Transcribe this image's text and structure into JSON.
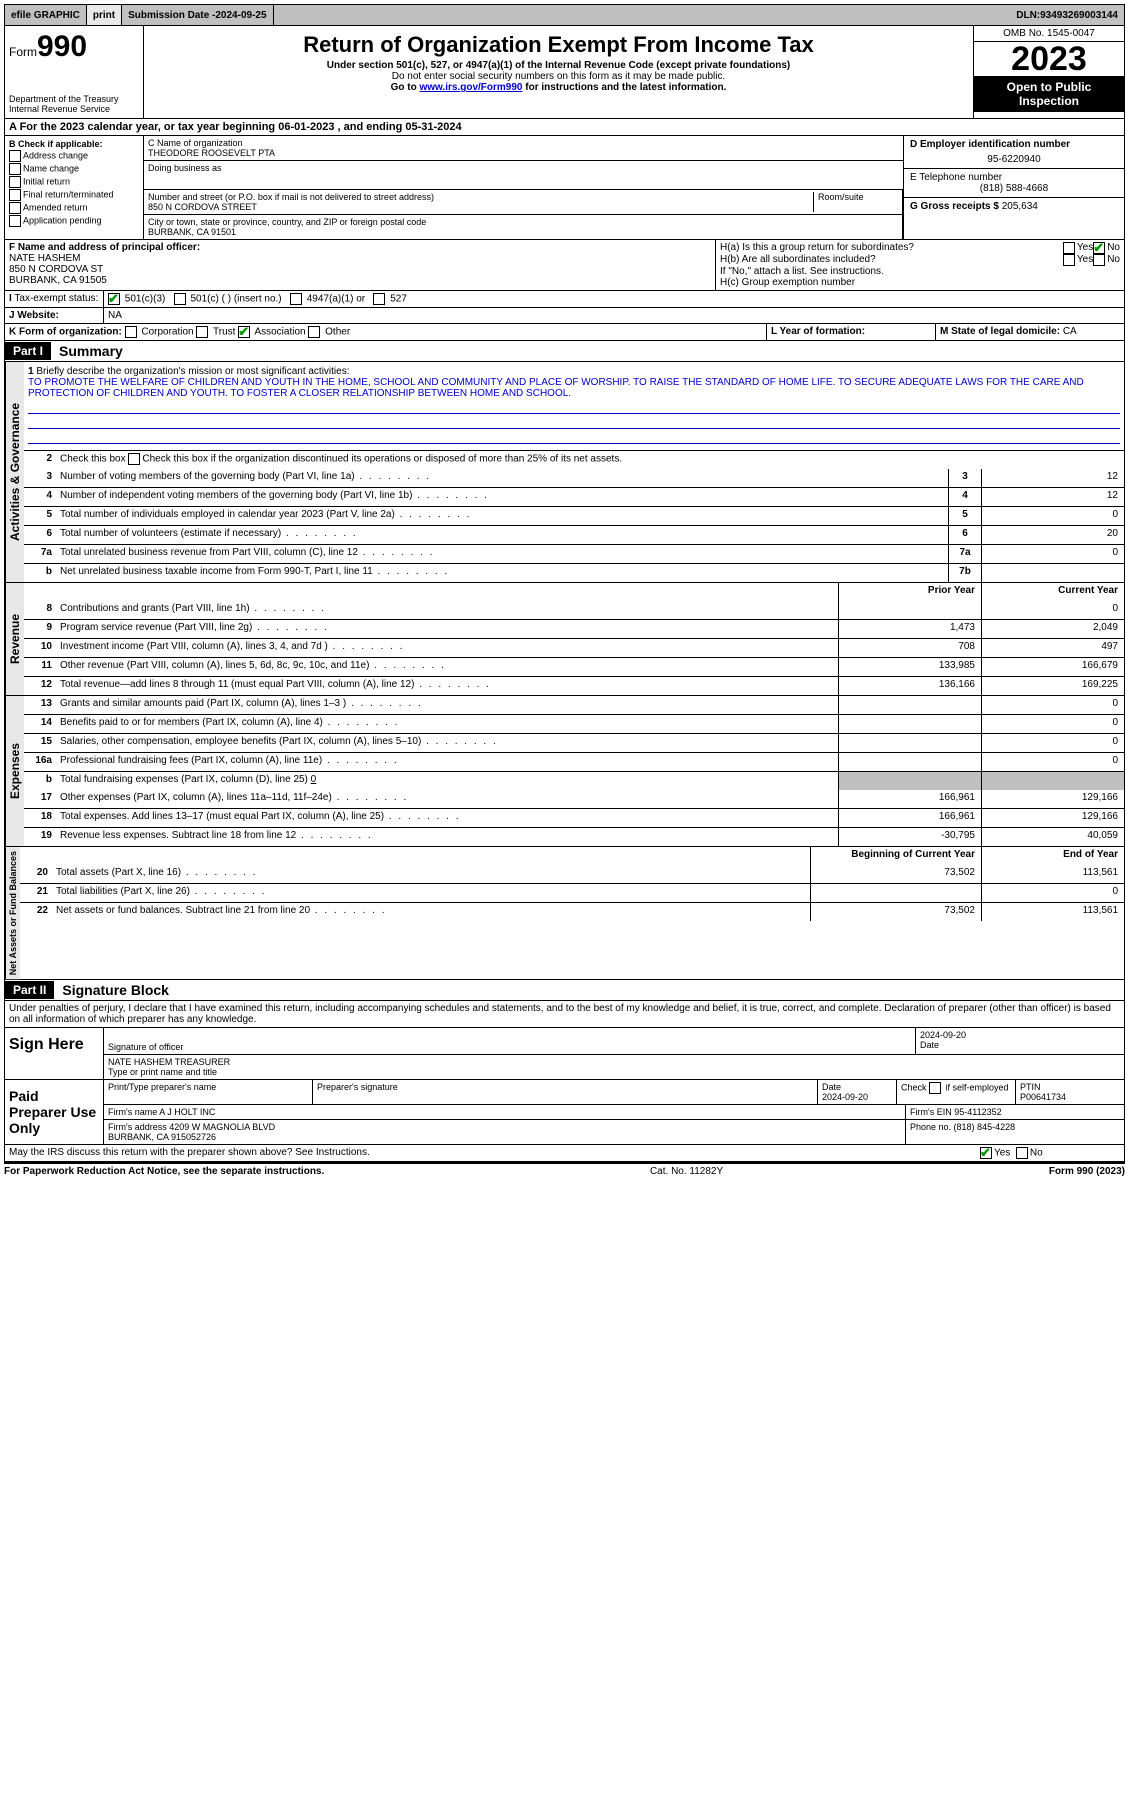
{
  "topbar": {
    "efile": "efile GRAPHIC",
    "print": "print",
    "subdate_label": "Submission Date - ",
    "subdate": "2024-09-25",
    "dln_label": "DLN: ",
    "dln": "93493269003144"
  },
  "header": {
    "form_label": "Form",
    "form_no": "990",
    "title": "Return of Organization Exempt From Income Tax",
    "sub1": "Under section 501(c), 527, or 4947(a)(1) of the Internal Revenue Code (except private foundations)",
    "sub2": "Do not enter social security numbers on this form as it may be made public.",
    "sub3_pre": "Go to ",
    "sub3_link": "www.irs.gov/Form990",
    "sub3_post": " for instructions and the latest information.",
    "dept": "Department of the Treasury\nInternal Revenue Service",
    "omb": "OMB No. 1545-0047",
    "year": "2023",
    "open": "Open to Public Inspection"
  },
  "A": {
    "text_pre": "A For the 2023 calendar year, or tax year beginning ",
    "begin": "06-01-2023",
    "mid": " , and ending ",
    "end": "05-31-2024"
  },
  "B": {
    "label": "B Check if applicable:",
    "items": [
      "Address change",
      "Name change",
      "Initial return",
      "Final return/terminated",
      "Amended return",
      "Application pending"
    ]
  },
  "C": {
    "name_label": "C Name of organization",
    "name": "THEODORE ROOSEVELT PTA",
    "dba_label": "Doing business as",
    "addr_label": "Number and street (or P.O. box if mail is not delivered to street address)",
    "addr": "850 N CORDOVA STREET",
    "room_label": "Room/suite",
    "city_label": "City or town, state or province, country, and ZIP or foreign postal code",
    "city": "BURBANK, CA  91501"
  },
  "D": {
    "label": "D Employer identification number",
    "val": "95-6220940"
  },
  "E": {
    "label": "E Telephone number",
    "val": "(818) 588-4668"
  },
  "G": {
    "label": "G Gross receipts $ ",
    "val": "205,634"
  },
  "F": {
    "label": "F  Name and address of principal officer:",
    "name": "NATE HASHEM",
    "addr": "850 N CORDOVA ST",
    "city": "BURBANK, CA  91505"
  },
  "H": {
    "a": "H(a)  Is this a group return for subordinates?",
    "b": "H(b)  Are all subordinates included?",
    "b_note": "If \"No,\" attach a list. See instructions.",
    "c": "H(c)  Group exemption number ",
    "yes": "Yes",
    "no": "No"
  },
  "I": {
    "label": "Tax-exempt status:",
    "opt1": "501(c)(3)",
    "opt2": "501(c) (  ) (insert no.)",
    "opt3": "4947(a)(1) or",
    "opt4": "527"
  },
  "J": {
    "label": "Website:",
    "val": "NA"
  },
  "K": {
    "label": "K Form of organization:",
    "opts": [
      "Corporation",
      "Trust",
      "Association",
      "Other"
    ],
    "checked": 2
  },
  "L": {
    "label": "L Year of formation:",
    "val": ""
  },
  "M": {
    "label": "M State of legal domicile: ",
    "val": "CA"
  },
  "part1": {
    "hdr": "Part I",
    "title": "Summary",
    "tab_gov": "Activities & Governance",
    "tab_rev": "Revenue",
    "tab_exp": "Expenses",
    "tab_net": "Net Assets or Fund Balances",
    "l1_label": "Briefly describe the organization's mission or most significant activities:",
    "l1_text": "TO PROMOTE THE WELFARE OF CHILDREN AND YOUTH IN THE HOME, SCHOOL AND COMMUNITY AND PLACE OF WORSHIP. TO RAISE THE STANDARD OF HOME LIFE. TO SECURE ADEQUATE LAWS FOR THE CARE AND PROTECTION OF CHILDREN AND YOUTH. TO FOSTER A CLOSER RELATIONSHIP BETWEEN HOME AND SCHOOL.",
    "l2": "Check this box  if the organization discontinued its operations or disposed of more than 25% of its net assets.",
    "lines_gov": [
      {
        "n": "3",
        "d": "Number of voting members of the governing body (Part VI, line 1a)",
        "box": "3",
        "v": "12"
      },
      {
        "n": "4",
        "d": "Number of independent voting members of the governing body (Part VI, line 1b)",
        "box": "4",
        "v": "12"
      },
      {
        "n": "5",
        "d": "Total number of individuals employed in calendar year 2023 (Part V, line 2a)",
        "box": "5",
        "v": "0"
      },
      {
        "n": "6",
        "d": "Total number of volunteers (estimate if necessary)",
        "box": "6",
        "v": "20"
      },
      {
        "n": "7a",
        "d": "Total unrelated business revenue from Part VIII, column (C), line 12",
        "box": "7a",
        "v": "0"
      },
      {
        "n": "b",
        "d": "Net unrelated business taxable income from Form 990-T, Part I, line 11",
        "box": "7b",
        "v": ""
      }
    ],
    "col_prior": "Prior Year",
    "col_curr": "Current Year",
    "lines_rev": [
      {
        "n": "8",
        "d": "Contributions and grants (Part VIII, line 1h)",
        "p": "",
        "c": "0"
      },
      {
        "n": "9",
        "d": "Program service revenue (Part VIII, line 2g)",
        "p": "1,473",
        "c": "2,049"
      },
      {
        "n": "10",
        "d": "Investment income (Part VIII, column (A), lines 3, 4, and 7d )",
        "p": "708",
        "c": "497"
      },
      {
        "n": "11",
        "d": "Other revenue (Part VIII, column (A), lines 5, 6d, 8c, 9c, 10c, and 11e)",
        "p": "133,985",
        "c": "166,679"
      },
      {
        "n": "12",
        "d": "Total revenue—add lines 8 through 11 (must equal Part VIII, column (A), line 12)",
        "p": "136,166",
        "c": "169,225"
      }
    ],
    "lines_exp": [
      {
        "n": "13",
        "d": "Grants and similar amounts paid (Part IX, column (A), lines 1–3 )",
        "p": "",
        "c": "0"
      },
      {
        "n": "14",
        "d": "Benefits paid to or for members (Part IX, column (A), line 4)",
        "p": "",
        "c": "0"
      },
      {
        "n": "15",
        "d": "Salaries, other compensation, employee benefits (Part IX, column (A), lines 5–10)",
        "p": "",
        "c": "0"
      },
      {
        "n": "16a",
        "d": "Professional fundraising fees (Part IX, column (A), line 11e)",
        "p": "",
        "c": "0"
      }
    ],
    "l16b": {
      "n": "b",
      "d": "Total fundraising expenses (Part IX, column (D), line 25) ",
      "v": "0"
    },
    "lines_exp2": [
      {
        "n": "17",
        "d": "Other expenses (Part IX, column (A), lines 11a–11d, 11f–24e)",
        "p": "166,961",
        "c": "129,166"
      },
      {
        "n": "18",
        "d": "Total expenses. Add lines 13–17 (must equal Part IX, column (A), line 25)",
        "p": "166,961",
        "c": "129,166"
      },
      {
        "n": "19",
        "d": "Revenue less expenses. Subtract line 18 from line 12",
        "p": "-30,795",
        "c": "40,059"
      }
    ],
    "col_begin": "Beginning of Current Year",
    "col_end": "End of Year",
    "lines_net": [
      {
        "n": "20",
        "d": "Total assets (Part X, line 16)",
        "p": "73,502",
        "c": "113,561"
      },
      {
        "n": "21",
        "d": "Total liabilities (Part X, line 26)",
        "p": "",
        "c": "0"
      },
      {
        "n": "22",
        "d": "Net assets or fund balances. Subtract line 21 from line 20",
        "p": "73,502",
        "c": "113,561"
      }
    ]
  },
  "part2": {
    "hdr": "Part II",
    "title": "Signature Block",
    "decl": "Under penalties of perjury, I declare that I have examined this return, including accompanying schedules and statements, and to the best of my knowledge and belief, it is true, correct, and complete. Declaration of preparer (other than officer) is based on all information of which preparer has any knowledge."
  },
  "sign": {
    "label": "Sign Here",
    "sig_label": "Signature of officer",
    "date_label": "Date",
    "date": "2024-09-20",
    "name": "NATE HASHEM  TREASURER",
    "name_label": "Type or print name and title"
  },
  "prep": {
    "label": "Paid Preparer Use Only",
    "c1": "Print/Type preparer's name",
    "c2": "Preparer's signature",
    "c3": "Date",
    "c3v": "2024-09-20",
    "c4": "Check         if self-employed",
    "c5": "PTIN",
    "c5v": "P00641734",
    "firm_label": "Firm's name    ",
    "firm": "A J HOLT INC",
    "ein_label": "Firm's EIN  ",
    "ein": "95-4112352",
    "addr_label": "Firm's address ",
    "addr": "4209 W MAGNOLIA BLVD\nBURBANK, CA  915052726",
    "phone_label": "Phone no. ",
    "phone": "(818) 845-4228"
  },
  "discuss": {
    "text": "May the IRS discuss this return with the preparer shown above? See Instructions.",
    "yes": "Yes",
    "no": "No"
  },
  "footer": {
    "left": "For Paperwork Reduction Act Notice, see the separate instructions.",
    "mid": "Cat. No. 11282Y",
    "right_pre": "Form ",
    "right_b": "990",
    "right_post": " (2023)"
  }
}
